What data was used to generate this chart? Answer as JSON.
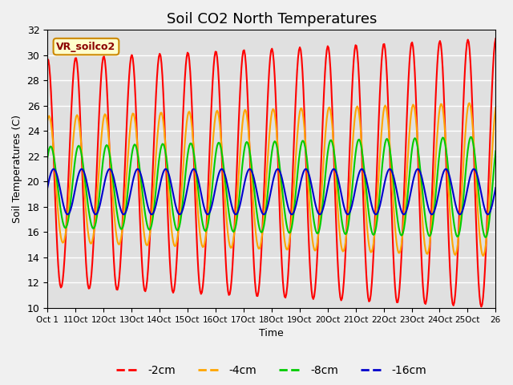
{
  "title": "Soil CO2 North Temperatures",
  "ylabel": "Soil Temperatures (C)",
  "xlabel": "Time",
  "annotation": "VR_soilco2",
  "ylim": [
    10,
    32
  ],
  "colors": {
    "-2cm": "#ff0000",
    "-4cm": "#ffa500",
    "-8cm": "#00cc00",
    "-16cm": "#0000cc"
  },
  "legend_entries": [
    "-2cm",
    "-4cm",
    "-8cm",
    "-16cm"
  ],
  "tick_labels": [
    "Oct 1",
    "11Oct",
    "12Oct",
    "13Oct",
    "14Oct",
    "15Oct",
    "16Oct",
    "17Oct",
    "18Oct",
    "19Oct",
    "20Oct",
    "21Oct",
    "22Oct",
    "23Oct",
    "24Oct",
    "25Oct",
    "26"
  ],
  "yticks": [
    10,
    12,
    14,
    16,
    18,
    20,
    22,
    24,
    26,
    28,
    30,
    32
  ],
  "n_points": 500
}
